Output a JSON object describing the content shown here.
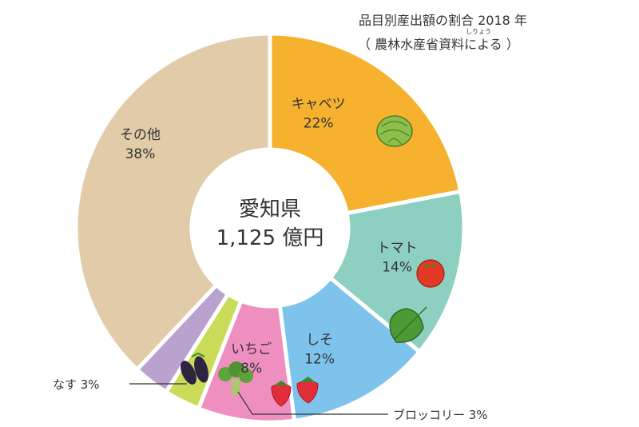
{
  "title": {
    "main": "品目別産出額の割合 2018 年",
    "source": "（ 農林水産省資料による ）",
    "ruby": "しりょう"
  },
  "center": {
    "line1": "愛知県",
    "line2": "1,125 億円"
  },
  "chart_data": {
    "type": "pie",
    "title": "品目別産出額の割合 2018 年",
    "categories": [
      "キャベツ",
      "トマト",
      "しそ",
      "いちご",
      "ブロッコリー",
      "なす",
      "その他"
    ],
    "values": [
      22,
      14,
      12,
      8,
      3,
      3,
      38
    ],
    "labels": [
      "22%",
      "14%",
      "12%",
      "8%",
      "3%",
      "3%",
      "38%"
    ],
    "callouts": {
      "ブロッコリー": "ブロッコリー 3%",
      "なす": "なす 3%"
    },
    "colors": [
      "#F6B22E",
      "#8DCFC0",
      "#7EC3EC",
      "#EE8FBF",
      "#CADB5A",
      "#B9A2CE",
      "#E2CBA8"
    ],
    "center_total": "1,125 億円",
    "region": "愛知県",
    "unit": "%"
  }
}
